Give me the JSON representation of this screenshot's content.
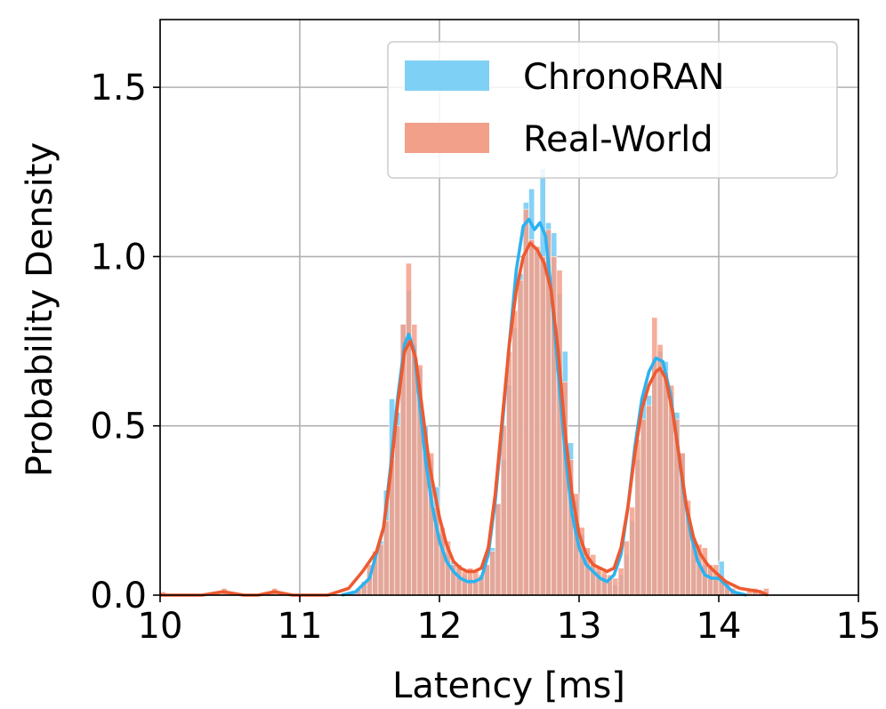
{
  "chart_data": {
    "type": "histogram",
    "xlabel": "Latency [ms]",
    "ylabel": "Probability Density",
    "xlim": [
      10,
      15
    ],
    "ylim": [
      0,
      1.7
    ],
    "xticks": [
      10,
      11,
      12,
      13,
      14,
      15
    ],
    "yticks": [
      0.0,
      0.5,
      1.0,
      1.5
    ],
    "xtick_labels": [
      "10",
      "11",
      "12",
      "13",
      "14",
      "15"
    ],
    "ytick_labels": [
      "0.0",
      "0.5",
      "1.0",
      "1.5"
    ],
    "grid": true,
    "legend": {
      "placement": "top-right"
    },
    "bin_width": 0.04,
    "series": [
      {
        "name": "ChronoRAN",
        "color": "#2CB2F0",
        "fill": "#7FD0F5",
        "bins": [
          [
            11.36,
            0.01
          ],
          [
            11.4,
            0.02
          ],
          [
            11.44,
            0.04
          ],
          [
            11.48,
            0.07
          ],
          [
            11.52,
            0.1
          ],
          [
            11.56,
            0.16
          ],
          [
            11.6,
            0.31
          ],
          [
            11.64,
            0.58
          ],
          [
            11.68,
            0.54
          ],
          [
            11.72,
            0.8
          ],
          [
            11.76,
            0.9
          ],
          [
            11.8,
            0.74
          ],
          [
            11.84,
            0.67
          ],
          [
            11.88,
            0.5
          ],
          [
            11.92,
            0.4
          ],
          [
            11.96,
            0.32
          ],
          [
            12.0,
            0.18
          ],
          [
            12.04,
            0.12
          ],
          [
            12.08,
            0.1
          ],
          [
            12.12,
            0.08
          ],
          [
            12.16,
            0.06
          ],
          [
            12.2,
            0.05
          ],
          [
            12.24,
            0.04
          ],
          [
            12.28,
            0.05
          ],
          [
            12.32,
            0.09
          ],
          [
            12.36,
            0.14
          ],
          [
            12.4,
            0.27
          ],
          [
            12.44,
            0.4
          ],
          [
            12.48,
            0.62
          ],
          [
            12.52,
            0.79
          ],
          [
            12.56,
            0.95
          ],
          [
            12.6,
            1.16
          ],
          [
            12.64,
            1.2
          ],
          [
            12.68,
            1.02
          ],
          [
            12.72,
            1.26
          ],
          [
            12.76,
            1.1
          ],
          [
            12.8,
            1.07
          ],
          [
            12.84,
            0.89
          ],
          [
            12.88,
            0.72
          ],
          [
            12.92,
            0.45
          ],
          [
            12.96,
            0.28
          ],
          [
            13.0,
            0.18
          ],
          [
            13.04,
            0.13
          ],
          [
            13.08,
            0.1
          ],
          [
            13.12,
            0.07
          ],
          [
            13.16,
            0.06
          ],
          [
            13.2,
            0.04
          ],
          [
            13.24,
            0.03
          ],
          [
            13.28,
            0.06
          ],
          [
            13.32,
            0.12
          ],
          [
            13.36,
            0.22
          ],
          [
            13.4,
            0.4
          ],
          [
            13.44,
            0.57
          ],
          [
            13.48,
            0.59
          ],
          [
            13.52,
            0.7
          ],
          [
            13.56,
            0.72
          ],
          [
            13.6,
            0.69
          ],
          [
            13.64,
            0.6
          ],
          [
            13.68,
            0.54
          ],
          [
            13.72,
            0.42
          ],
          [
            13.76,
            0.26
          ],
          [
            13.8,
            0.15
          ],
          [
            13.84,
            0.11
          ],
          [
            13.88,
            0.09
          ],
          [
            13.92,
            0.08
          ],
          [
            13.96,
            0.05
          ],
          [
            14.0,
            0.1
          ],
          [
            14.04,
            0.04
          ],
          [
            14.08,
            0.02
          ],
          [
            14.12,
            0.01
          ],
          [
            14.24,
            0.01
          ],
          [
            14.28,
            0.01
          ],
          [
            14.32,
            0.01
          ]
        ],
        "kde": [
          [
            11.3,
            0.0
          ],
          [
            11.4,
            0.01
          ],
          [
            11.5,
            0.05
          ],
          [
            11.6,
            0.2
          ],
          [
            11.65,
            0.38
          ],
          [
            11.7,
            0.58
          ],
          [
            11.75,
            0.74
          ],
          [
            11.78,
            0.77
          ],
          [
            11.82,
            0.72
          ],
          [
            11.86,
            0.56
          ],
          [
            11.9,
            0.4
          ],
          [
            11.95,
            0.26
          ],
          [
            12.0,
            0.16
          ],
          [
            12.05,
            0.1
          ],
          [
            12.1,
            0.07
          ],
          [
            12.15,
            0.05
          ],
          [
            12.2,
            0.04
          ],
          [
            12.25,
            0.04
          ],
          [
            12.3,
            0.05
          ],
          [
            12.35,
            0.12
          ],
          [
            12.4,
            0.28
          ],
          [
            12.45,
            0.5
          ],
          [
            12.5,
            0.74
          ],
          [
            12.55,
            0.96
          ],
          [
            12.6,
            1.09
          ],
          [
            12.64,
            1.11
          ],
          [
            12.68,
            1.08
          ],
          [
            12.72,
            1.1
          ],
          [
            12.76,
            1.06
          ],
          [
            12.8,
            0.9
          ],
          [
            12.85,
            0.66
          ],
          [
            12.9,
            0.42
          ],
          [
            12.95,
            0.24
          ],
          [
            13.0,
            0.14
          ],
          [
            13.05,
            0.09
          ],
          [
            13.1,
            0.07
          ],
          [
            13.15,
            0.05
          ],
          [
            13.2,
            0.04
          ],
          [
            13.25,
            0.06
          ],
          [
            13.3,
            0.12
          ],
          [
            13.35,
            0.26
          ],
          [
            13.4,
            0.44
          ],
          [
            13.45,
            0.58
          ],
          [
            13.5,
            0.66
          ],
          [
            13.55,
            0.7
          ],
          [
            13.6,
            0.69
          ],
          [
            13.65,
            0.6
          ],
          [
            13.7,
            0.46
          ],
          [
            13.75,
            0.3
          ],
          [
            13.8,
            0.18
          ],
          [
            13.85,
            0.1
          ],
          [
            13.9,
            0.06
          ],
          [
            13.95,
            0.05
          ],
          [
            14.0,
            0.05
          ],
          [
            14.05,
            0.03
          ],
          [
            14.1,
            0.01
          ],
          [
            14.2,
            0.0
          ]
        ]
      },
      {
        "name": "Real-World",
        "color": "#EE5A30",
        "fill": "#F3A08A",
        "bins": [
          [
            10.0,
            0.01
          ],
          [
            10.4,
            0.01
          ],
          [
            10.44,
            0.02
          ],
          [
            10.48,
            0.01
          ],
          [
            10.76,
            0.01
          ],
          [
            10.8,
            0.02
          ],
          [
            10.84,
            0.01
          ],
          [
            11.4,
            0.02
          ],
          [
            11.44,
            0.04
          ],
          [
            11.48,
            0.09
          ],
          [
            11.52,
            0.13
          ],
          [
            11.56,
            0.15
          ],
          [
            11.6,
            0.22
          ],
          [
            11.64,
            0.4
          ],
          [
            11.68,
            0.5
          ],
          [
            11.72,
            0.8
          ],
          [
            11.76,
            0.98
          ],
          [
            11.8,
            0.8
          ],
          [
            11.84,
            0.68
          ],
          [
            11.88,
            0.45
          ],
          [
            11.92,
            0.42
          ],
          [
            11.96,
            0.26
          ],
          [
            12.0,
            0.2
          ],
          [
            12.04,
            0.16
          ],
          [
            12.08,
            0.09
          ],
          [
            12.12,
            0.09
          ],
          [
            12.16,
            0.07
          ],
          [
            12.2,
            0.08
          ],
          [
            12.24,
            0.07
          ],
          [
            12.28,
            0.06
          ],
          [
            12.32,
            0.09
          ],
          [
            12.36,
            0.13
          ],
          [
            12.4,
            0.27
          ],
          [
            12.44,
            0.5
          ],
          [
            12.48,
            0.72
          ],
          [
            12.52,
            0.84
          ],
          [
            12.56,
            0.93
          ],
          [
            12.6,
            1.14
          ],
          [
            12.64,
            1.05
          ],
          [
            12.68,
            1.03
          ],
          [
            12.72,
            1.0
          ],
          [
            12.76,
            1.08
          ],
          [
            12.8,
            1.0
          ],
          [
            12.84,
            0.96
          ],
          [
            12.88,
            0.63
          ],
          [
            12.92,
            0.4
          ],
          [
            12.96,
            0.3
          ],
          [
            13.0,
            0.2
          ],
          [
            13.04,
            0.14
          ],
          [
            13.08,
            0.12
          ],
          [
            13.12,
            0.08
          ],
          [
            13.16,
            0.07
          ],
          [
            13.2,
            0.06
          ],
          [
            13.24,
            0.05
          ],
          [
            13.28,
            0.08
          ],
          [
            13.32,
            0.16
          ],
          [
            13.36,
            0.26
          ],
          [
            13.4,
            0.46
          ],
          [
            13.44,
            0.52
          ],
          [
            13.48,
            0.56
          ],
          [
            13.52,
            0.82
          ],
          [
            13.56,
            0.74
          ],
          [
            13.6,
            0.66
          ],
          [
            13.64,
            0.62
          ],
          [
            13.68,
            0.52
          ],
          [
            13.72,
            0.42
          ],
          [
            13.76,
            0.28
          ],
          [
            13.8,
            0.17
          ],
          [
            13.84,
            0.15
          ],
          [
            13.88,
            0.14
          ],
          [
            13.92,
            0.09
          ],
          [
            13.96,
            0.09
          ],
          [
            14.0,
            0.05
          ],
          [
            14.04,
            0.03
          ],
          [
            14.08,
            0.02
          ],
          [
            14.12,
            0.01
          ],
          [
            14.2,
            0.02
          ],
          [
            14.24,
            0.02
          ],
          [
            14.28,
            0.01
          ],
          [
            14.32,
            0.02
          ]
        ],
        "kde": [
          [
            10.0,
            0.0
          ],
          [
            10.3,
            0.0
          ],
          [
            10.45,
            0.01
          ],
          [
            10.6,
            0.0
          ],
          [
            10.7,
            0.0
          ],
          [
            10.82,
            0.01
          ],
          [
            10.95,
            0.0
          ],
          [
            11.2,
            0.0
          ],
          [
            11.35,
            0.02
          ],
          [
            11.45,
            0.07
          ],
          [
            11.55,
            0.13
          ],
          [
            11.6,
            0.2
          ],
          [
            11.65,
            0.36
          ],
          [
            11.7,
            0.56
          ],
          [
            11.75,
            0.72
          ],
          [
            11.79,
            0.75
          ],
          [
            11.83,
            0.7
          ],
          [
            11.88,
            0.54
          ],
          [
            11.93,
            0.38
          ],
          [
            12.0,
            0.23
          ],
          [
            12.05,
            0.15
          ],
          [
            12.1,
            0.1
          ],
          [
            12.15,
            0.08
          ],
          [
            12.2,
            0.07
          ],
          [
            12.25,
            0.07
          ],
          [
            12.3,
            0.08
          ],
          [
            12.35,
            0.14
          ],
          [
            12.4,
            0.3
          ],
          [
            12.45,
            0.52
          ],
          [
            12.5,
            0.74
          ],
          [
            12.55,
            0.9
          ],
          [
            12.6,
            1.0
          ],
          [
            12.65,
            1.04
          ],
          [
            12.7,
            1.02
          ],
          [
            12.75,
            0.98
          ],
          [
            12.8,
            0.9
          ],
          [
            12.85,
            0.72
          ],
          [
            12.9,
            0.48
          ],
          [
            12.95,
            0.3
          ],
          [
            13.0,
            0.18
          ],
          [
            13.05,
            0.12
          ],
          [
            13.1,
            0.09
          ],
          [
            13.15,
            0.08
          ],
          [
            13.2,
            0.07
          ],
          [
            13.25,
            0.08
          ],
          [
            13.3,
            0.14
          ],
          [
            13.35,
            0.26
          ],
          [
            13.4,
            0.42
          ],
          [
            13.45,
            0.55
          ],
          [
            13.5,
            0.62
          ],
          [
            13.55,
            0.66
          ],
          [
            13.58,
            0.67
          ],
          [
            13.62,
            0.64
          ],
          [
            13.67,
            0.54
          ],
          [
            13.72,
            0.4
          ],
          [
            13.77,
            0.26
          ],
          [
            13.82,
            0.17
          ],
          [
            13.87,
            0.12
          ],
          [
            13.92,
            0.09
          ],
          [
            13.97,
            0.07
          ],
          [
            14.05,
            0.04
          ],
          [
            14.15,
            0.02
          ],
          [
            14.3,
            0.01
          ],
          [
            14.35,
            0.0
          ]
        ]
      }
    ]
  }
}
